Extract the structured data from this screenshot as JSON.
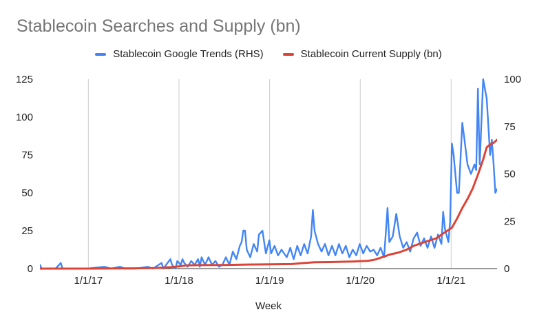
{
  "chart_data": {
    "type": "line",
    "title": "Stablecoin Searches and Supply (bn)",
    "xlabel": "Week",
    "x_ticks": [
      "1/1/17",
      "1/1/18",
      "1/1/19",
      "1/1/20",
      "1/1/21"
    ],
    "y_left_ticks": [
      "0",
      "25",
      "50",
      "75",
      "100",
      "125"
    ],
    "y_right_ticks": [
      "0",
      "25",
      "50",
      "75",
      "100"
    ],
    "ylim_left": [
      0,
      125
    ],
    "ylim_right": [
      0,
      100
    ],
    "x_range": [
      "2016-06-20",
      "2021-07-05"
    ],
    "grid": "vertical",
    "legend_position": "top",
    "series": [
      {
        "name": "Stablecoin Google Trends (RHS)",
        "axis": "right",
        "color": "#4285f4",
        "points": [
          [
            "2016-06-20",
            2
          ],
          [
            "2016-06-27",
            0
          ],
          [
            "2016-07-18",
            0
          ],
          [
            "2016-08-22",
            0
          ],
          [
            "2016-09-12",
            3
          ],
          [
            "2016-09-19",
            0
          ],
          [
            "2016-12-26",
            0
          ],
          [
            "2017-03-06",
            1
          ],
          [
            "2017-04-03",
            0
          ],
          [
            "2017-05-08",
            1
          ],
          [
            "2017-05-29",
            0
          ],
          [
            "2017-07-10",
            0
          ],
          [
            "2017-08-28",
            1
          ],
          [
            "2017-09-18",
            0
          ],
          [
            "2017-10-23",
            3
          ],
          [
            "2017-10-30",
            0
          ],
          [
            "2017-11-27",
            5
          ],
          [
            "2017-12-04",
            2
          ],
          [
            "2017-12-18",
            0
          ],
          [
            "2017-12-25",
            4
          ],
          [
            "2018-01-08",
            2
          ],
          [
            "2018-01-15",
            5
          ],
          [
            "2018-01-22",
            3
          ],
          [
            "2018-02-05",
            1
          ],
          [
            "2018-02-19",
            4
          ],
          [
            "2018-03-05",
            2
          ],
          [
            "2018-03-19",
            5
          ],
          [
            "2018-03-26",
            1
          ],
          [
            "2018-04-02",
            6
          ],
          [
            "2018-04-16",
            2
          ],
          [
            "2018-04-30",
            6
          ],
          [
            "2018-05-14",
            2
          ],
          [
            "2018-05-28",
            4
          ],
          [
            "2018-06-11",
            1
          ],
          [
            "2018-06-25",
            2
          ],
          [
            "2018-07-09",
            6
          ],
          [
            "2018-07-23",
            2
          ],
          [
            "2018-08-06",
            9
          ],
          [
            "2018-08-20",
            5
          ],
          [
            "2018-09-03",
            12
          ],
          [
            "2018-09-10",
            14
          ],
          [
            "2018-09-17",
            20
          ],
          [
            "2018-09-24",
            20
          ],
          [
            "2018-10-01",
            10
          ],
          [
            "2018-10-15",
            6
          ],
          [
            "2018-10-29",
            13
          ],
          [
            "2018-11-12",
            9
          ],
          [
            "2018-11-19",
            18
          ],
          [
            "2018-12-03",
            20
          ],
          [
            "2018-12-17",
            8
          ],
          [
            "2018-12-31",
            15
          ],
          [
            "2019-01-07",
            8
          ],
          [
            "2019-01-21",
            12
          ],
          [
            "2019-02-04",
            7
          ],
          [
            "2019-02-18",
            10
          ],
          [
            "2019-03-11",
            6
          ],
          [
            "2019-03-25",
            11
          ],
          [
            "2019-04-08",
            5
          ],
          [
            "2019-04-22",
            12
          ],
          [
            "2019-05-06",
            7
          ],
          [
            "2019-05-20",
            13
          ],
          [
            "2019-06-03",
            8
          ],
          [
            "2019-06-17",
            17
          ],
          [
            "2019-06-24",
            31
          ],
          [
            "2019-07-01",
            20
          ],
          [
            "2019-07-15",
            13
          ],
          [
            "2019-07-29",
            9
          ],
          [
            "2019-08-12",
            13
          ],
          [
            "2019-08-26",
            7
          ],
          [
            "2019-09-09",
            12
          ],
          [
            "2019-09-23",
            7
          ],
          [
            "2019-10-07",
            13
          ],
          [
            "2019-10-21",
            8
          ],
          [
            "2019-11-04",
            12
          ],
          [
            "2019-11-18",
            6
          ],
          [
            "2019-12-02",
            10
          ],
          [
            "2019-12-16",
            7
          ],
          [
            "2019-12-30",
            13
          ],
          [
            "2020-01-13",
            8
          ],
          [
            "2020-01-27",
            12
          ],
          [
            "2020-02-10",
            9
          ],
          [
            "2020-02-24",
            10
          ],
          [
            "2020-03-09",
            7
          ],
          [
            "2020-03-23",
            11
          ],
          [
            "2020-04-06",
            6
          ],
          [
            "2020-04-20",
            32
          ],
          [
            "2020-04-27",
            14
          ],
          [
            "2020-05-11",
            17
          ],
          [
            "2020-05-25",
            29
          ],
          [
            "2020-06-08",
            17
          ],
          [
            "2020-06-22",
            11
          ],
          [
            "2020-07-06",
            14
          ],
          [
            "2020-07-20",
            9
          ],
          [
            "2020-08-03",
            16
          ],
          [
            "2020-08-17",
            19
          ],
          [
            "2020-08-31",
            12
          ],
          [
            "2020-09-14",
            16
          ],
          [
            "2020-09-28",
            11
          ],
          [
            "2020-10-12",
            17
          ],
          [
            "2020-10-26",
            11
          ],
          [
            "2020-11-09",
            18
          ],
          [
            "2020-11-23",
            13
          ],
          [
            "2020-11-30",
            30
          ],
          [
            "2020-12-07",
            21
          ],
          [
            "2020-12-21",
            14
          ],
          [
            "2020-12-28",
            25
          ],
          [
            "2021-01-04",
            66
          ],
          [
            "2021-01-11",
            60
          ],
          [
            "2021-01-25",
            40
          ],
          [
            "2021-02-01",
            40
          ],
          [
            "2021-02-15",
            77
          ],
          [
            "2021-02-22",
            70
          ],
          [
            "2021-03-08",
            55
          ],
          [
            "2021-03-22",
            50
          ],
          [
            "2021-04-05",
            55
          ],
          [
            "2021-04-12",
            52
          ],
          [
            "2021-04-19",
            95
          ],
          [
            "2021-04-26",
            55
          ],
          [
            "2021-05-10",
            100
          ],
          [
            "2021-05-17",
            95
          ],
          [
            "2021-05-24",
            90
          ],
          [
            "2021-06-07",
            60
          ],
          [
            "2021-06-14",
            68
          ],
          [
            "2021-06-21",
            55
          ],
          [
            "2021-06-28",
            40
          ],
          [
            "2021-07-05",
            42
          ],
          [
            "2021-07-12",
            41
          ]
        ]
      },
      {
        "name": "Stablecoin Current Supply (bn)",
        "axis": "left",
        "color": "#db4437",
        "points": [
          [
            "2016-06-20",
            0
          ],
          [
            "2017-01-02",
            0
          ],
          [
            "2017-07-03",
            0.2
          ],
          [
            "2017-10-02",
            0.4
          ],
          [
            "2017-12-04",
            1
          ],
          [
            "2018-01-01",
            1.5
          ],
          [
            "2018-02-05",
            2.2
          ],
          [
            "2018-04-02",
            2.3
          ],
          [
            "2018-07-02",
            2.4
          ],
          [
            "2018-10-01",
            2.7
          ],
          [
            "2019-01-07",
            2.8
          ],
          [
            "2019-04-01",
            3.0
          ],
          [
            "2019-05-06",
            3.5
          ],
          [
            "2019-07-01",
            4.2
          ],
          [
            "2019-09-02",
            4.3
          ],
          [
            "2019-12-02",
            4.7
          ],
          [
            "2020-02-03",
            5.2
          ],
          [
            "2020-03-02",
            6.0
          ],
          [
            "2020-04-06",
            8
          ],
          [
            "2020-05-04",
            9.5
          ],
          [
            "2020-06-01",
            10.5
          ],
          [
            "2020-07-06",
            12.5
          ],
          [
            "2020-08-03",
            15
          ],
          [
            "2020-09-07",
            17
          ],
          [
            "2020-10-05",
            18.5
          ],
          [
            "2020-11-02",
            20
          ],
          [
            "2020-12-07",
            24
          ],
          [
            "2021-01-04",
            27
          ],
          [
            "2021-01-25",
            33
          ],
          [
            "2021-02-15",
            40
          ],
          [
            "2021-03-08",
            46
          ],
          [
            "2021-03-29",
            53
          ],
          [
            "2021-04-19",
            62
          ],
          [
            "2021-05-10",
            72
          ],
          [
            "2021-05-24",
            80
          ],
          [
            "2021-06-07",
            82
          ],
          [
            "2021-06-21",
            83
          ],
          [
            "2021-07-05",
            85
          ],
          [
            "2021-07-12",
            86
          ]
        ]
      }
    ]
  }
}
